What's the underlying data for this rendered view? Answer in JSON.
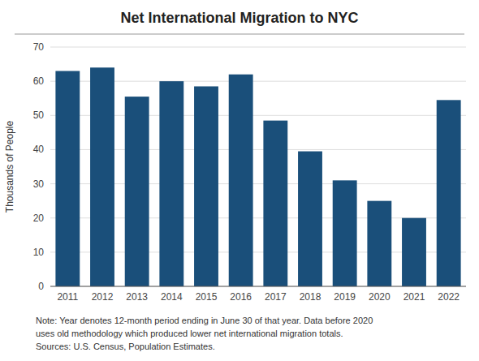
{
  "chart_data": {
    "type": "bar",
    "title": "Net International Migration to NYC",
    "ylabel": "Thousands of People",
    "categories": [
      "2011",
      "2012",
      "2013",
      "2014",
      "2015",
      "2016",
      "2017",
      "2018",
      "2019",
      "2020",
      "2021",
      "2022"
    ],
    "values": [
      63,
      64,
      55.5,
      60,
      58.5,
      62,
      48.5,
      39.5,
      31,
      25,
      20,
      54.5
    ],
    "color": "#1a4f7a",
    "ylim": [
      0,
      70
    ],
    "yticks": [
      0,
      10,
      20,
      30,
      40,
      50,
      60,
      70
    ],
    "grid": true,
    "annotations": [
      "Note: Year denotes 12-month period ending in June 30 of that year. Data before 2020",
      "uses old methodology which produced lower net international migration totals.",
      "Sources: U.S. Census, Population Estimates."
    ]
  }
}
